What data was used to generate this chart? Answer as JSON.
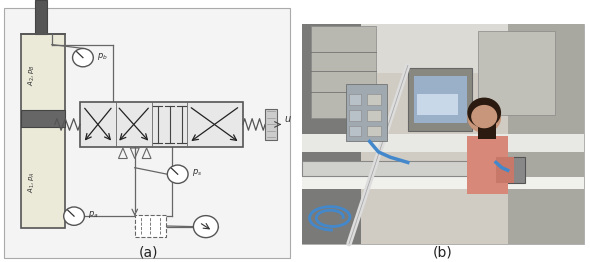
{
  "figure_width": 5.9,
  "figure_height": 2.62,
  "dpi": 100,
  "background_color": "#ffffff",
  "left_panel_label": "(a)",
  "right_panel_label": "(b)",
  "panel_bg": "#f0f0f0",
  "pipe_color": "#666666",
  "pipe_lw": 0.9,
  "valve_fill": "#e8e8e8",
  "cyl_fill": "#ebe9d8",
  "piston_fill": "#666666",
  "rod_fill": "#555555",
  "gauge_fill": "#ffffff",
  "spring_color": "#555555",
  "label_color": "#333333",
  "arrow_color": "#222222"
}
